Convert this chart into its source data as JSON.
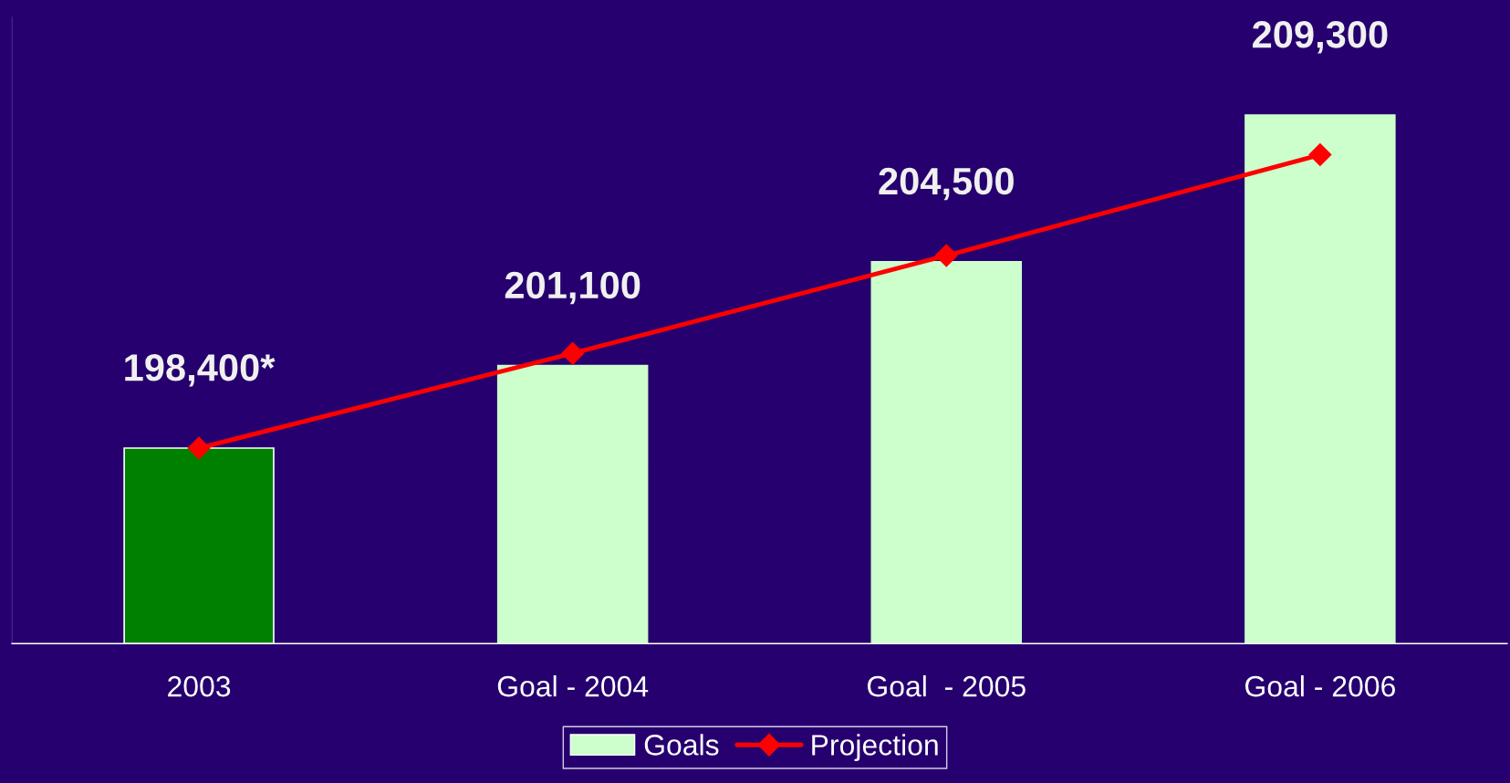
{
  "chart_data": {
    "type": "bar",
    "ylim": [
      192000,
      212500
    ],
    "categories": [
      "2003",
      "Goal - 2004",
      "Goal  - 2005",
      "Goal - 2006"
    ],
    "series": [
      {
        "name": "Goals",
        "colors": [
          "#008000",
          "#ccffcc",
          "#ccffcc",
          "#ccffcc"
        ],
        "values": [
          198400,
          201100,
          204500,
          209300
        ],
        "value_labels": [
          "198,400*",
          "201,100",
          "204,500",
          "209,300"
        ]
      },
      {
        "name": "Projection",
        "type": "line",
        "color": "#ff0000",
        "values": [
          198400,
          201500,
          204700,
          208000
        ],
        "marker": "diamond"
      }
    ],
    "tick_labels": "x",
    "legend": "bottom",
    "grid": false
  }
}
